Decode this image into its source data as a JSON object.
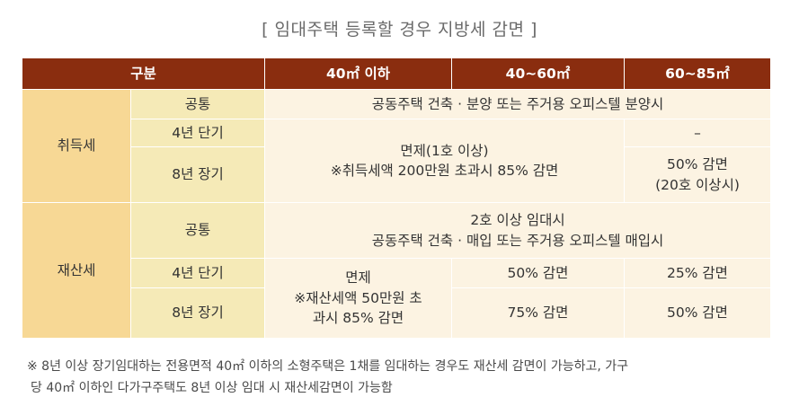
{
  "title": "[ 임대주택 등록할 경우 지방세 감면 ]",
  "headers": [
    "구분",
    "40㎡ 이하",
    "40~60㎡",
    "60~85㎡"
  ],
  "acquisition": {
    "category": "취득세",
    "common_label": "공통",
    "common_value": "공동주택 건축 · 분양 또는 주거용 오피스텔 분양시",
    "row4_label": "4년 단기",
    "row8_label": "8년 장기",
    "exempt_line1": "면제(1호 이상)",
    "exempt_line2": "※취득세액 200만원 초과시 85% 감면",
    "col85_4yr": "–",
    "col85_8yr_line1": "50% 감면",
    "col85_8yr_line2": "(20호 이상시)"
  },
  "property": {
    "category": "재산세",
    "common_label": "공통",
    "common_line1": "2호 이상 임대시",
    "common_line2": "공동주택 건축 · 매입 또는 주거용 오피스텔 매입시",
    "row4_label": "4년 단기",
    "row8_label": "8년 장기",
    "exempt_line1": "면제",
    "exempt_line2": "※재산세액 50만원 초",
    "exempt_line3": "과시 85% 감면",
    "col60_4yr": "50% 감면",
    "col85_4yr": "25% 감면",
    "col60_8yr": "75% 감면",
    "col85_8yr": "50% 감면"
  },
  "footnote_line1": "※  8년 이상 장기임대하는 전용면적 40㎡ 이하의 소형주택은 1채를 임대하는 경우도 재산세 감면이 가능하고, 가구",
  "footnote_line2": "당 40㎡ 이하인 다가구주택도 8년 이상 임대 시 재산세감면이 가능함"
}
